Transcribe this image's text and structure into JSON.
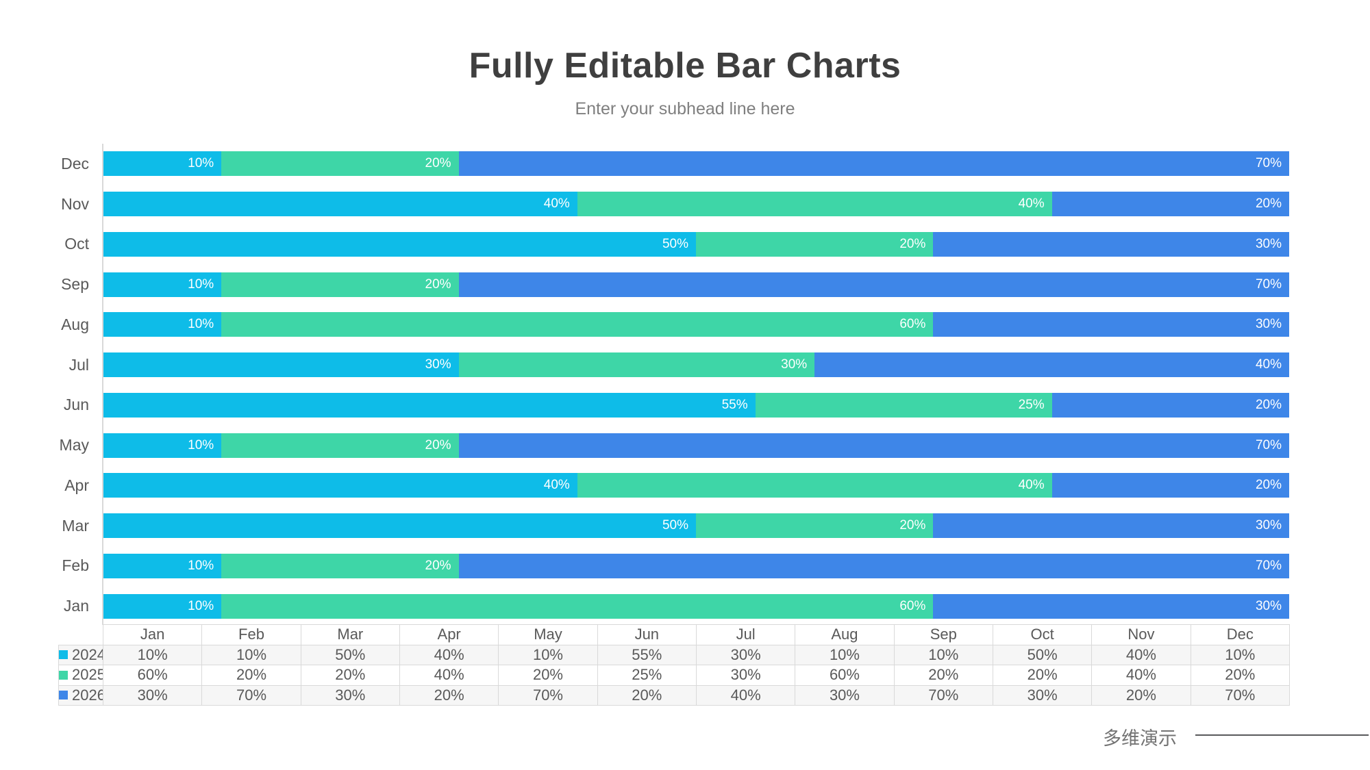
{
  "page": {
    "title": "Fully Editable Bar Charts",
    "subtitle": "Enter your subhead line here",
    "footer_brand": "多维演示"
  },
  "colors": {
    "series_2024": "#0ebce8",
    "series_2025": "#3ed6a7",
    "series_2026": "#3e86e8",
    "title_text": "#3f3f3f",
    "subtitle_text": "#7f7f7f",
    "axis_and_table_border": "#d9d9d9",
    "category_and_table_text": "#595959",
    "bar_label_text": "#ffffff",
    "footer_text": "#737373",
    "footer_line": "#58595b"
  },
  "chart_data": {
    "type": "bar",
    "orientation": "horizontal",
    "stacked": true,
    "units": "percent-of-total",
    "title": "Fully Editable Bar Charts",
    "subtitle": "Enter your subhead line here",
    "categories": [
      "Jan",
      "Feb",
      "Mar",
      "Apr",
      "May",
      "Jun",
      "Jul",
      "Aug",
      "Sep",
      "Oct",
      "Nov",
      "Dec"
    ],
    "row_order_top_to_bottom": [
      "Dec",
      "Nov",
      "Oct",
      "Sep",
      "Aug",
      "Jul",
      "Jun",
      "May",
      "Apr",
      "Mar",
      "Feb",
      "Jan"
    ],
    "series": [
      {
        "name": "2024",
        "color": "#0ebce8",
        "values": [
          10,
          10,
          50,
          40,
          10,
          55,
          30,
          10,
          10,
          50,
          40,
          10
        ]
      },
      {
        "name": "2025",
        "color": "#3ed6a7",
        "values": [
          60,
          20,
          20,
          40,
          20,
          25,
          30,
          60,
          20,
          20,
          40,
          20
        ]
      },
      {
        "name": "2026",
        "color": "#3e86e8",
        "values": [
          30,
          70,
          30,
          20,
          70,
          20,
          40,
          30,
          70,
          30,
          20,
          70
        ]
      }
    ],
    "value_suffix": "%",
    "xlim": [
      0,
      100
    ],
    "bar_labels": "inside-end",
    "grid": false,
    "legend_position": "data-table-row-headers"
  },
  "table": {
    "corner_label": ""
  }
}
